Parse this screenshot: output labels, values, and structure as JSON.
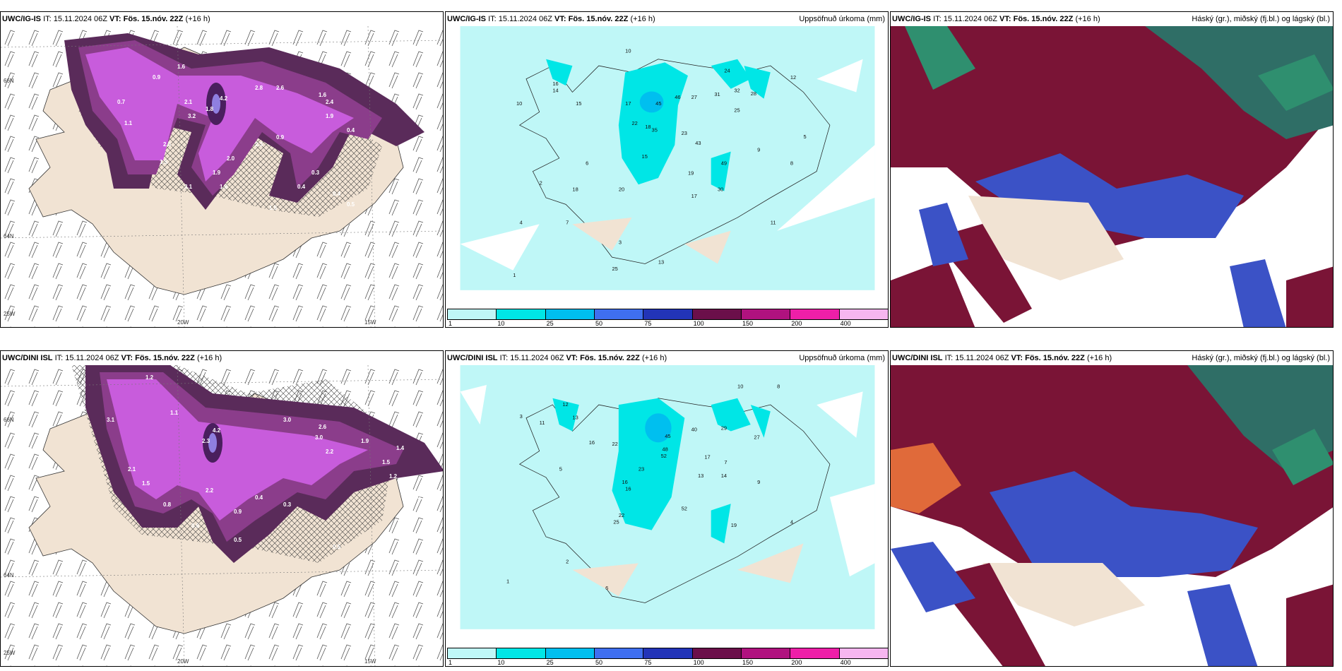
{
  "panels": {
    "p1": {
      "model": "UWC/IG-IS",
      "it": "IT: 15.11.2024 06Z",
      "vt_label": "VT:",
      "vt": "Fös. 15.nóv. 22Z",
      "lead": "(+16 h)",
      "right": "",
      "axis": {
        "a": "66N",
        "b": "64N",
        "c": "20W",
        "d": "15W",
        "e": "25W"
      },
      "labels": [
        "1.6",
        "0.9",
        "2.1",
        "3.2",
        "4.2",
        "1.8",
        "2.8",
        "2.6",
        "1.6",
        "2.4",
        "1.9",
        "0.4",
        "2.5",
        "1.5",
        "2.0",
        "1.9",
        "3.1",
        "1.6",
        "1.5",
        "0.5",
        "0.3",
        "0.4",
        "0.7",
        "1.1",
        "2.3",
        "0.9",
        "0.2",
        "0.4"
      ]
    },
    "p2": {
      "model": "UWC/IG-IS",
      "it": "IT: 15.11.2024 06Z",
      "vt_label": "VT:",
      "vt": "Fös. 15.nóv. 22Z",
      "lead": "(+16 h)",
      "right": "Uppsöfnuð úrkoma (mm)",
      "axis": {
        "a": "66N",
        "b": "64N"
      },
      "labels": [
        "16",
        "14",
        "10",
        "15",
        "17",
        "45",
        "46",
        "27",
        "31",
        "32",
        "28",
        "25",
        "22",
        "18",
        "35",
        "23",
        "43",
        "19",
        "15",
        "17",
        "20",
        "18",
        "30",
        "49",
        "25",
        "10",
        "24",
        "12",
        "5",
        "7",
        "3",
        "4",
        "2",
        "6",
        "8",
        "9",
        "1",
        "11",
        "13"
      ]
    },
    "p3": {
      "model": "UWC/IG-IS",
      "it": "IT: 15.11.2024 06Z",
      "vt_label": "VT:",
      "vt": "Fös. 15.nóv. 22Z",
      "lead": "(+16 h)",
      "right": "Háský (gr.), miðský (fj.bl.) og lágský (bl.)"
    },
    "p4": {
      "model": "UWC/DINI ISL",
      "it": "IT: 15.11.2024 06Z",
      "vt_label": "VT:",
      "vt": "Fös. 15.nóv. 22Z",
      "lead": "(+16 h)",
      "right": "",
      "axis": {
        "a": "66N",
        "b": "64N",
        "c": "20W",
        "d": "15W",
        "e": "25W"
      },
      "labels": [
        "1.2",
        "1.1",
        "3.1",
        "4.2",
        "2.3",
        "3.0",
        "2.6",
        "3.0",
        "2.2",
        "1.9",
        "1.5",
        "0.3",
        "2.1",
        "1.5",
        "2.2",
        "0.4",
        "0.8",
        "0.5",
        "0.6",
        "0.9",
        "1.2",
        "0.3",
        "0.5",
        "1.4"
      ]
    },
    "p5": {
      "model": "UWC/DINI ISL",
      "it": "IT: 15.11.2024 06Z",
      "vt_label": "VT:",
      "vt": "Fös. 15.nóv. 22Z",
      "lead": "(+16 h)",
      "right": "Uppsöfnuð úrkoma (mm)",
      "axis": {
        "a": "66N",
        "b": "64N"
      },
      "labels": [
        "12",
        "13",
        "11",
        "16",
        "22",
        "45",
        "40",
        "29",
        "27",
        "48",
        "52",
        "17",
        "13",
        "14",
        "23",
        "16",
        "16",
        "52",
        "22",
        "25",
        "19",
        "10",
        "8",
        "9",
        "7",
        "5",
        "3",
        "4",
        "2",
        "6",
        "1"
      ]
    },
    "p6": {
      "model": "UWC/DINI ISL",
      "it": "IT: 15.11.2024 06Z",
      "vt_label": "VT:",
      "vt": "Fös. 15.nóv. 22Z",
      "lead": "(+16 h)",
      "right": "Háský (gr.), miðský (fj.bl.) og lágský (bl.)"
    }
  },
  "colorbar": {
    "ticks": [
      "1",
      "10",
      "25",
      "50",
      "75",
      "100",
      "150",
      "200",
      "400"
    ],
    "colors": [
      "#bff7f7",
      "#00e6e6",
      "#00bfef",
      "#3f6ff0",
      "#2234b8",
      "#6b0f4a",
      "#b0127f",
      "#ee1fa8",
      "#f6b6f0"
    ]
  },
  "colors": {
    "land": "#f1e3d3",
    "precip_light": "#bff7f7",
    "precip_cyan": "#00e6e6",
    "snow_dark": "#5a2b5a",
    "snow_mid": "#8b3d8b",
    "snow_bright": "#c85cdc",
    "cloud_high": "#7a1436",
    "cloud_mid": "#3b52c6",
    "cloud_low": "#2f8f6f"
  }
}
